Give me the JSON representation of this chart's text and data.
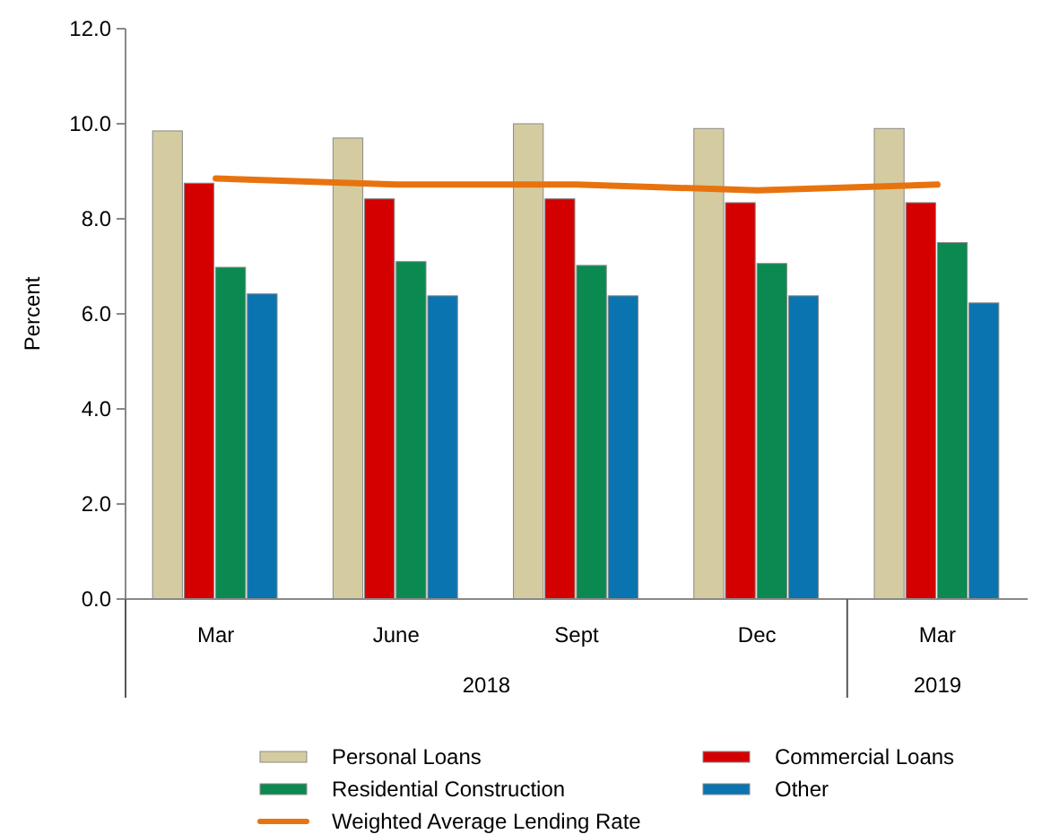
{
  "chart_data": {
    "type": "bar",
    "ylabel": "Percent",
    "categories": [
      "Mar",
      "June",
      "Sept",
      "Dec",
      "Mar"
    ],
    "annotations": [
      "2018",
      "2019"
    ],
    "series": [
      {
        "name": "Personal Loans",
        "color": "#d4cca0",
        "values": [
          9.85,
          9.7,
          10.0,
          9.9,
          9.9
        ]
      },
      {
        "name": "Commercial Loans",
        "color": "#d40000",
        "values": [
          8.75,
          8.42,
          8.42,
          8.34,
          8.34
        ]
      },
      {
        "name": "Residential Construction",
        "color": "#0a8a50",
        "values": [
          6.98,
          7.1,
          7.02,
          7.06,
          7.5
        ]
      },
      {
        "name": "Other",
        "color": "#0a74b0",
        "values": [
          6.42,
          6.38,
          6.38,
          6.38,
          6.23
        ]
      },
      {
        "name": "Weighted Average Lending Rate",
        "type": "line",
        "color": "#e8730e",
        "values": [
          8.85,
          8.72,
          8.72,
          8.6,
          8.72
        ]
      }
    ],
    "ylim": [
      0,
      12
    ],
    "yticks": [
      {
        "value": 0,
        "label": "0.0"
      },
      {
        "value": 2,
        "label": "2.0"
      },
      {
        "value": 4,
        "label": "4.0"
      },
      {
        "value": 6,
        "label": "6.0"
      },
      {
        "value": 8,
        "label": "8.0"
      },
      {
        "value": 10,
        "label": "10.0"
      },
      {
        "value": 12,
        "label": "12.0"
      }
    ],
    "legend": "bottom"
  }
}
